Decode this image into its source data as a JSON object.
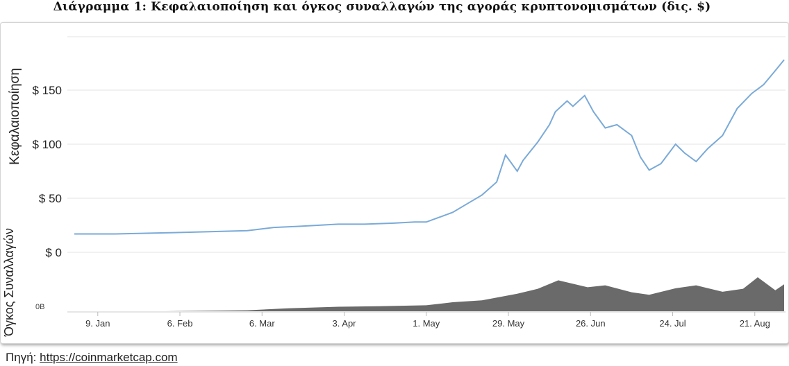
{
  "title": "Διάγραμμα 1: Κεφαλαιοποίηση και όγκος συναλλαγών της αγοράς κρυπτονομισμάτων (δις. $)",
  "source": {
    "label": "Πηγή:",
    "url": "https://coinmarketcap.com"
  },
  "colors": {
    "cap_line": "#7aaad8",
    "volume_fill": "#6a6a6a",
    "grid": "#e3e3e3"
  },
  "chart_data": [
    {
      "type": "line",
      "ylabel": "Κεφαλαιοποίηση",
      "yticks": [
        "$ 0",
        "$ 50",
        "$ 100",
        "$ 150"
      ],
      "ylim": [
        0,
        185
      ],
      "xlim": [
        "2017-01-01",
        "2017-08-31"
      ],
      "series": [
        {
          "x": [
            "2017-01-01",
            "2017-01-15",
            "2017-02-01",
            "2017-02-15",
            "2017-03-01",
            "2017-03-10",
            "2017-03-18",
            "2017-03-25",
            "2017-04-01",
            "2017-04-10",
            "2017-04-20",
            "2017-04-27",
            "2017-05-01",
            "2017-05-05",
            "2017-05-10",
            "2017-05-15",
            "2017-05-20",
            "2017-05-25",
            "2017-05-28",
            "2017-06-01",
            "2017-06-03",
            "2017-06-08",
            "2017-06-12",
            "2017-06-14",
            "2017-06-18",
            "2017-06-20",
            "2017-06-24",
            "2017-06-27",
            "2017-07-01",
            "2017-07-05",
            "2017-07-10",
            "2017-07-13",
            "2017-07-16",
            "2017-07-20",
            "2017-07-25",
            "2017-07-28",
            "2017-08-01",
            "2017-08-05",
            "2017-08-10",
            "2017-08-15",
            "2017-08-20",
            "2017-08-24",
            "2017-08-28",
            "2017-08-31"
          ],
          "y": [
            17,
            17,
            18,
            19,
            20,
            23,
            24,
            25,
            26,
            26,
            27,
            28,
            28,
            32,
            37,
            45,
            53,
            65,
            90,
            75,
            85,
            102,
            118,
            130,
            140,
            135,
            145,
            130,
            115,
            118,
            108,
            88,
            76,
            82,
            100,
            92,
            84,
            96,
            108,
            133,
            147,
            155,
            168,
            178
          ]
        }
      ]
    },
    {
      "type": "area",
      "ylabel": "Όγκος Συναλλαγών",
      "yticks": [
        "0B"
      ],
      "xticks": [
        "9. Jan",
        "6. Feb",
        "6. Mar",
        "3. Apr",
        "1. May",
        "29. May",
        "26. Jun",
        "24. Jul",
        "21. Aug"
      ],
      "ylim": [
        0,
        10
      ],
      "series": [
        {
          "x": [
            "2017-01-01",
            "2017-02-01",
            "2017-03-01",
            "2017-03-15",
            "2017-04-01",
            "2017-04-15",
            "2017-05-01",
            "2017-05-10",
            "2017-05-20",
            "2017-06-01",
            "2017-06-08",
            "2017-06-15",
            "2017-06-25",
            "2017-07-01",
            "2017-07-10",
            "2017-07-16",
            "2017-07-25",
            "2017-08-01",
            "2017-08-10",
            "2017-08-17",
            "2017-08-22",
            "2017-08-28",
            "2017-08-31"
          ],
          "y": [
            0,
            0,
            0.2,
            0.6,
            0.9,
            1,
            1.2,
            1.8,
            2.2,
            3.5,
            4.5,
            6.2,
            4.8,
            5.2,
            3.8,
            3.3,
            4.6,
            5.2,
            3.9,
            4.5,
            6.8,
            4.2,
            5.4
          ]
        }
      ]
    }
  ]
}
